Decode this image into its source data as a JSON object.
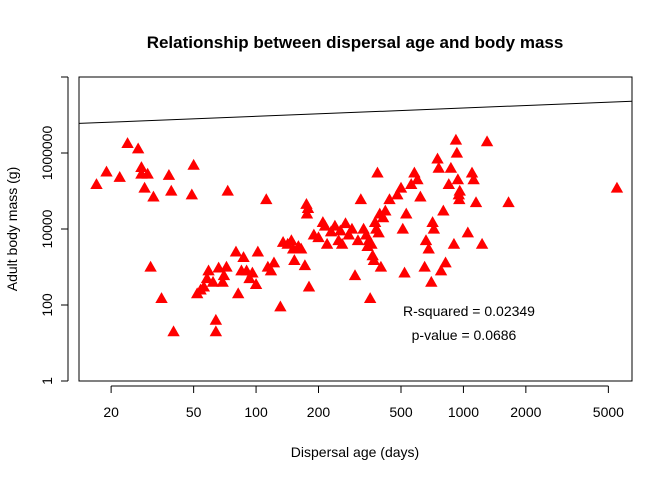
{
  "chart_data": {
    "type": "scatter",
    "title": "Relationship between dispersal age and body mass",
    "xlabel": "Dispersal age (days)",
    "ylabel": "Adult body mass (g)",
    "x_scale": "log",
    "y_scale": "log",
    "xlim": [
      14,
      6500
    ],
    "ylim": [
      1,
      100000000.0
    ],
    "x_ticks": [
      {
        "value": 20,
        "label": "20"
      },
      {
        "value": 50,
        "label": "50"
      },
      {
        "value": 100,
        "label": "100"
      },
      {
        "value": 200,
        "label": "200"
      },
      {
        "value": 500,
        "label": "500"
      },
      {
        "value": 1000,
        "label": "1000"
      },
      {
        "value": 2000,
        "label": "2000"
      },
      {
        "value": 5000,
        "label": "5000"
      }
    ],
    "y_ticks": [
      {
        "value": 1,
        "label": "1"
      },
      {
        "value": 100,
        "label": "100"
      },
      {
        "value": 10000,
        "label": "10000"
      },
      {
        "value": 1000000,
        "label": "1000000"
      },
      {
        "value": 100000000,
        "label": ""
      }
    ],
    "grid": false,
    "marker": "filled-triangle",
    "color": "#ff0000",
    "regression_line": {
      "x": [
        14,
        6500
      ],
      "y": [
        6000000,
        23000000
      ],
      "color": "#000000"
    },
    "annotations": [
      {
        "text": "R-squared = 0.02349",
        "x": 1000,
        "y": 100
      },
      {
        "text": "p-value = 0.0686",
        "x": 1000,
        "y": 40
      }
    ],
    "series": [
      {
        "points": [
          [
            17,
            150000
          ],
          [
            19,
            320000
          ],
          [
            22,
            230000
          ],
          [
            24,
            1800000
          ],
          [
            27,
            1300000
          ],
          [
            28,
            420000
          ],
          [
            28,
            280000
          ],
          [
            29,
            120000
          ],
          [
            30,
            280000
          ],
          [
            32,
            70000
          ],
          [
            31,
            1000
          ],
          [
            35,
            150
          ],
          [
            38,
            260000
          ],
          [
            39,
            100000
          ],
          [
            40,
            20
          ],
          [
            49,
            80000
          ],
          [
            50,
            480000
          ],
          [
            52,
            200
          ],
          [
            54,
            250
          ],
          [
            56,
            300
          ],
          [
            58,
            500
          ],
          [
            59,
            800
          ],
          [
            62,
            400
          ],
          [
            64,
            40
          ],
          [
            64,
            20
          ],
          [
            66,
            950
          ],
          [
            69,
            400
          ],
          [
            70,
            600
          ],
          [
            72,
            1000
          ],
          [
            73,
            100000
          ],
          [
            80,
            2500
          ],
          [
            82,
            200
          ],
          [
            85,
            800
          ],
          [
            87,
            1800
          ],
          [
            90,
            800
          ],
          [
            93,
            500
          ],
          [
            96,
            700
          ],
          [
            100,
            350
          ],
          [
            102,
            2500
          ],
          [
            112,
            60000
          ],
          [
            114,
            1000
          ],
          [
            118,
            800
          ],
          [
            122,
            1300
          ],
          [
            131,
            90
          ],
          [
            135,
            4500
          ],
          [
            142,
            4000
          ],
          [
            148,
            5000
          ],
          [
            151,
            3000
          ],
          [
            153,
            1500
          ],
          [
            160,
            3500
          ],
          [
            165,
            3000
          ],
          [
            172,
            1100
          ],
          [
            175,
            45000
          ],
          [
            176,
            25000
          ],
          [
            178,
            35000
          ],
          [
            180,
            300
          ],
          [
            190,
            7000
          ],
          [
            200,
            6000
          ],
          [
            210,
            15000
          ],
          [
            215,
            12000
          ],
          [
            220,
            4000
          ],
          [
            230,
            8500
          ],
          [
            240,
            12000
          ],
          [
            250,
            5000
          ],
          [
            255,
            9000
          ],
          [
            260,
            4000
          ],
          [
            270,
            14000
          ],
          [
            280,
            7000
          ],
          [
            290,
            10000
          ],
          [
            300,
            600
          ],
          [
            310,
            5000
          ],
          [
            320,
            60000
          ],
          [
            330,
            10000
          ],
          [
            340,
            7000
          ],
          [
            345,
            3500
          ],
          [
            350,
            5000
          ],
          [
            355,
            150
          ],
          [
            360,
            4000
          ],
          [
            365,
            2000
          ],
          [
            370,
            1500
          ],
          [
            375,
            15000
          ],
          [
            380,
            10000
          ],
          [
            385,
            300000
          ],
          [
            390,
            8000
          ],
          [
            395,
            25000
          ],
          [
            400,
            1000
          ],
          [
            410,
            20000
          ],
          [
            420,
            30000
          ],
          [
            440,
            60000
          ],
          [
            480,
            80000
          ],
          [
            500,
            120000
          ],
          [
            510,
            10000
          ],
          [
            520,
            700
          ],
          [
            530,
            25000
          ],
          [
            560,
            150000
          ],
          [
            580,
            300000
          ],
          [
            600,
            200000
          ],
          [
            620,
            70000
          ],
          [
            650,
            1000
          ],
          [
            660,
            5000
          ],
          [
            680,
            3000
          ],
          [
            700,
            400
          ],
          [
            710,
            15000
          ],
          [
            720,
            10000
          ],
          [
            750,
            700000
          ],
          [
            760,
            400000
          ],
          [
            780,
            800
          ],
          [
            800,
            30000
          ],
          [
            820,
            1300
          ],
          [
            850,
            150000
          ],
          [
            870,
            400000
          ],
          [
            900,
            4000
          ],
          [
            920,
            2200000
          ],
          [
            930,
            1000000
          ],
          [
            940,
            200000
          ],
          [
            950,
            80000
          ],
          [
            955,
            60000
          ],
          [
            960,
            100000
          ],
          [
            1050,
            8000
          ],
          [
            1100,
            300000
          ],
          [
            1120,
            200000
          ],
          [
            1150,
            50000
          ],
          [
            1230,
            4000
          ],
          [
            1300,
            2000000
          ],
          [
            1650,
            50000
          ],
          [
            5500,
            120000
          ]
        ]
      }
    ]
  }
}
